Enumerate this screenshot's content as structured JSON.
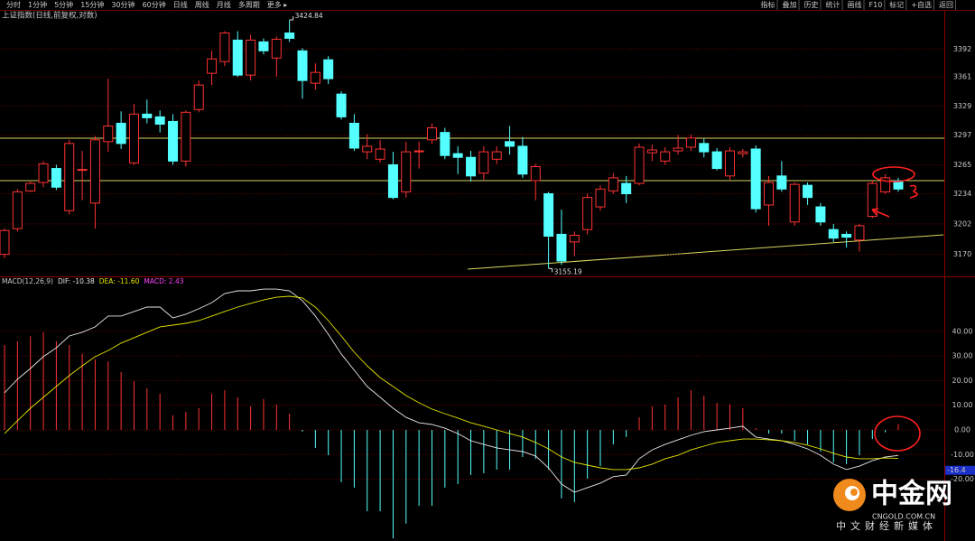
{
  "toolbar": {
    "left": [
      "分时",
      "1分钟",
      "5分钟",
      "15分钟",
      "30分钟",
      "60分钟",
      "日线",
      "周线",
      "月线",
      "多周期",
      "更多 ▸"
    ],
    "active": 6,
    "right": [
      "指标",
      "叠加",
      "历史",
      "统计",
      "画线",
      "F10",
      "标记",
      "+自选",
      "返回"
    ]
  },
  "logo": {
    "name": "中金网",
    "site": "CNGOLD.COM.CN",
    "slogan": "中文财经新媒体"
  },
  "chart_data": [
    {
      "type": "candlestick",
      "title": "上证指数(日线,前复权,对数)",
      "log_scale": true,
      "grid": true,
      "up_color": "#ff3232",
      "down_color": "#54ffff",
      "ylim": [
        3148,
        3435
      ],
      "yticks": [
        3170,
        3202,
        3234,
        3265,
        3297,
        3329,
        3361,
        3392
      ],
      "open": [
        3170,
        3197,
        3237,
        3246,
        3261,
        3216,
        3259,
        3224,
        3290,
        3310,
        3267,
        3320,
        3317,
        3312,
        3269,
        3325,
        3365,
        3378,
        3402,
        3363,
        3400,
        3382,
        3410,
        3390,
        3354,
        3380,
        3342,
        3310,
        3279,
        3271,
        3265,
        3236,
        3279,
        3292,
        3300,
        3277,
        3273,
        3256,
        3271,
        3290,
        3285,
        3248,
        3234,
        3191,
        3183,
        3196,
        3220,
        3237,
        3245,
        3245,
        3278,
        3269,
        3280,
        3284,
        3288,
        3279,
        3253,
        3277,
        3282,
        3222,
        3253,
        3204,
        3243,
        3220,
        3196,
        3191,
        3185,
        3210,
        3236,
        3248
      ],
      "high": [
        3197,
        3239,
        3247,
        3269,
        3265,
        3292,
        3280,
        3296,
        3359,
        3323,
        3331,
        3336,
        3324,
        3320,
        3324,
        3357,
        3390,
        3412,
        3412,
        3408,
        3404,
        3406,
        3424.84,
        3393,
        3376,
        3384,
        3345,
        3320,
        3298,
        3292,
        3279,
        3290,
        3290,
        3310,
        3305,
        3285,
        3280,
        3285,
        3285,
        3307,
        3295,
        3266,
        3236,
        3217,
        3194,
        3234,
        3243,
        3256,
        3253,
        3288,
        3287,
        3284,
        3297,
        3298,
        3293,
        3283,
        3284,
        3282,
        3286,
        3253,
        3269,
        3246,
        3246,
        3224,
        3202,
        3194,
        3202,
        3248,
        3255,
        3251
      ],
      "low": [
        3166,
        3194,
        3236,
        3241,
        3238,
        3212,
        3227,
        3197,
        3279,
        3282,
        3265,
        3310,
        3300,
        3265,
        3263,
        3322,
        3352,
        3373,
        3361,
        3357,
        3386,
        3361,
        3400,
        3337,
        3347,
        3353,
        3314,
        3280,
        3271,
        3267,
        3228,
        3230,
        3261,
        3288,
        3271,
        3255,
        3247,
        3249,
        3266,
        3276,
        3251,
        3227,
        3155.19,
        3159,
        3168,
        3191,
        3216,
        3234,
        3224,
        3243,
        3269,
        3265,
        3276,
        3280,
        3273,
        3259,
        3249,
        3273,
        3214,
        3200,
        3236,
        3200,
        3222,
        3200,
        3183,
        3177,
        3173,
        3208,
        3234,
        3236
      ],
      "close": [
        3195,
        3236,
        3245,
        3266,
        3241,
        3288,
        3260,
        3292,
        3307,
        3288,
        3320,
        3316,
        3309,
        3269,
        3322,
        3352,
        3381,
        3410,
        3363,
        3402,
        3390,
        3403,
        3404,
        3357,
        3366,
        3359,
        3317,
        3283,
        3285,
        3282,
        3230,
        3279,
        3280,
        3305,
        3275,
        3273,
        3253,
        3279,
        3279,
        3285,
        3255,
        3263,
        3189,
        3163,
        3190,
        3230,
        3239,
        3251,
        3234,
        3284,
        3281,
        3279,
        3283,
        3294,
        3279,
        3261,
        3280,
        3279,
        3218,
        3246,
        3239,
        3244,
        3230,
        3204,
        3187,
        3188,
        3200,
        3245,
        3251,
        3239
      ],
      "max_index": 22,
      "min_index": 42
    },
    {
      "type": "macd",
      "title": "MACD(12,26,9)",
      "grid": true,
      "ylim": [
        -44.7,
        61.9
      ],
      "yticks": [
        {
          "value": 40,
          "label": "40.00"
        },
        {
          "value": 30,
          "label": "30.00"
        },
        {
          "value": 20,
          "label": "20.00"
        },
        {
          "value": 10,
          "label": "10.00"
        },
        {
          "value": 0,
          "label": "0.00"
        },
        {
          "value": -10,
          "label": "-10.00"
        },
        {
          "value": -20,
          "label": "-20.00"
        }
      ],
      "y_marker": -16.4,
      "histogram": {
        "name": "MACD: 2.43",
        "color": "#ff3232",
        "negative_color": "#54ffff",
        "legend_color": "#ff40ff",
        "values": [
          34.4,
          35.9,
          38,
          39.6,
          36,
          34.4,
          30.8,
          28.6,
          27.8,
          23.4,
          19.8,
          16.8,
          14.7,
          5.9,
          7.3,
          8.8,
          14.7,
          16.1,
          13.2,
          9.5,
          12.5,
          10.3,
          6.6,
          -0.7,
          -7.3,
          -10.3,
          -21.2,
          -23.4,
          -33,
          -33,
          -44,
          -38,
          -30.8,
          -30.8,
          -23.4,
          -22,
          -18.3,
          -17.6,
          -16.1,
          -16.1,
          -11,
          -11.7,
          -16.1,
          -27.8,
          -29.3,
          -19.8,
          -14.7,
          -5.9,
          -2.9,
          5.1,
          9.5,
          10.3,
          13.2,
          16.1,
          13.9,
          11,
          10.3,
          8.8,
          0.7,
          -1.5,
          -1.5,
          -4.4,
          -5.9,
          -8.8,
          -13.2,
          -13.9,
          -10.3,
          -3.7,
          -1.0,
          2.43
        ]
      },
      "series": [
        {
          "name": "DIF: -10.38",
          "color": "#e8e8e8",
          "values": [
            15,
            20.5,
            24.9,
            29.7,
            33.3,
            38.1,
            39.6,
            41.8,
            46.2,
            46.2,
            48,
            49.8,
            49.8,
            45.4,
            46.9,
            49.1,
            51.6,
            55.3,
            56.4,
            56.4,
            57.1,
            57.1,
            56.4,
            52.4,
            46.2,
            38.8,
            30.8,
            24.2,
            17.6,
            13.2,
            8.8,
            5.1,
            2.9,
            2.2,
            0.7,
            -1.5,
            -4.4,
            -5.9,
            -7.3,
            -8.1,
            -8.8,
            -10.6,
            -15.4,
            -22,
            -25.3,
            -23.4,
            -21.6,
            -19,
            -18.3,
            -11.7,
            -8.1,
            -5.9,
            -4,
            -2.2,
            -0.7,
            0,
            0.7,
            1.5,
            -2.9,
            -3.7,
            -4.4,
            -5.9,
            -7.7,
            -10.3,
            -13.9,
            -16.1,
            -14.7,
            -12.5,
            -11,
            -10.38
          ]
        },
        {
          "name": "DEA: -11.60",
          "color": "#e6e600",
          "values": [
            -1.5,
            3.7,
            8.8,
            13.2,
            17.6,
            22,
            26,
            29.7,
            32.2,
            35.2,
            37.4,
            39.6,
            41.8,
            42.5,
            43.2,
            44.3,
            46.2,
            48,
            49.8,
            51.3,
            52.7,
            53.8,
            54.2,
            53.5,
            49.8,
            44.3,
            38.1,
            31.5,
            26,
            21.2,
            17.6,
            13.9,
            11,
            8.4,
            6.6,
            4.8,
            2.9,
            1.5,
            0,
            -1.5,
            -2.9,
            -5.1,
            -7.7,
            -11,
            -13.2,
            -14.3,
            -15.4,
            -16.1,
            -16.1,
            -15.4,
            -13.9,
            -11.7,
            -10.3,
            -8.1,
            -6.6,
            -5.1,
            -4.4,
            -3.7,
            -3.7,
            -4,
            -4.4,
            -5.1,
            -6.2,
            -7.7,
            -9.5,
            -11,
            -11.7,
            -11.7,
            -11.4,
            -11.6
          ]
        }
      ]
    }
  ]
}
